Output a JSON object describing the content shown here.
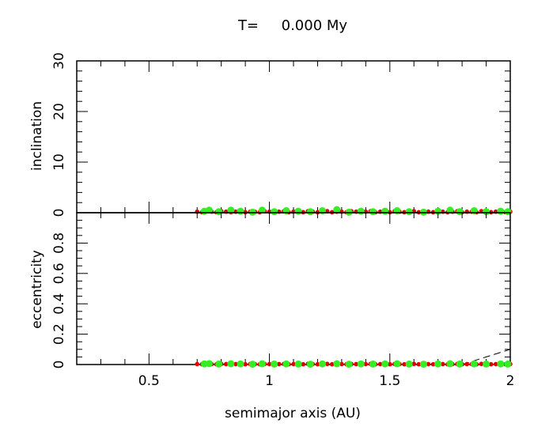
{
  "chart_data": [
    {
      "type": "scatter",
      "title": "T=     0.000 My",
      "xlabel": "",
      "ylabel": "inclination",
      "xlim": [
        0.2,
        2.0
      ],
      "ylim": [
        0,
        30
      ],
      "yticks": [
        0,
        10,
        20,
        30
      ],
      "grid": false,
      "series": [
        {
          "color": "#dd0000",
          "x": [
            0.7,
            0.72,
            0.74,
            0.76,
            0.78,
            0.8,
            0.82,
            0.84,
            0.86,
            0.88,
            0.9,
            0.92,
            0.94,
            0.96,
            0.98,
            1.0,
            1.02,
            1.04,
            1.06,
            1.08,
            1.1,
            1.12,
            1.14,
            1.16,
            1.18,
            1.2,
            1.22,
            1.24,
            1.26,
            1.28,
            1.3,
            1.32,
            1.34,
            1.36,
            1.38,
            1.4,
            1.42,
            1.44,
            1.46,
            1.48,
            1.5,
            1.52,
            1.54,
            1.56,
            1.58,
            1.6,
            1.62,
            1.64,
            1.66,
            1.68,
            1.7,
            1.72,
            1.74,
            1.76,
            1.78,
            1.8,
            1.82,
            1.84,
            1.86,
            1.88,
            1.9,
            1.92,
            1.94,
            1.96,
            1.98,
            2.0
          ],
          "y": [
            0.2,
            0.1,
            0.3,
            0.2,
            0.1,
            0.3,
            0.2,
            0.1,
            0.2,
            0.3,
            0.1,
            0.2,
            0.2,
            0.1,
            0.3,
            0.2,
            0.1,
            0.2,
            0.3,
            0.1,
            0.2,
            0.2,
            0.1,
            0.3,
            0.2,
            0.1,
            0.2,
            0.3,
            0.1,
            0.2,
            0.2,
            0.1,
            0.3,
            0.2,
            0.1,
            0.2,
            0.3,
            0.1,
            0.2,
            0.2,
            0.1,
            0.3,
            0.2,
            0.1,
            0.2,
            0.3,
            0.1,
            0.2,
            0.2,
            0.1,
            0.3,
            0.2,
            0.1,
            0.2,
            0.3,
            0.1,
            0.2,
            0.2,
            0.1,
            0.3,
            0.2,
            0.1,
            0.2,
            0.3,
            0.1,
            0.2
          ]
        },
        {
          "color": "#33ee22",
          "x": [
            0.73,
            0.75,
            0.79,
            0.84,
            0.88,
            0.93,
            0.97,
            1.02,
            1.07,
            1.12,
            1.17,
            1.22,
            1.28,
            1.33,
            1.38,
            1.43,
            1.48,
            1.53,
            1.58,
            1.64,
            1.7,
            1.75,
            1.79,
            1.85,
            1.9,
            1.96,
            1.99
          ],
          "y": [
            0.3,
            0.5,
            0.2,
            0.5,
            0.3,
            0.1,
            0.5,
            0.2,
            0.4,
            0.3,
            0.2,
            0.4,
            0.6,
            0.1,
            0.3,
            0.2,
            0.3,
            0.4,
            0.2,
            0.1,
            0.3,
            0.5,
            0.2,
            0.4,
            0.2,
            0.3,
            0.2
          ]
        }
      ]
    },
    {
      "type": "scatter",
      "xlabel": "semimajor axis (AU)",
      "ylabel": "eccentricity",
      "xlim": [
        0.2,
        2.0
      ],
      "ylim": [
        0,
        1.0
      ],
      "xticks": [
        0.5,
        1,
        1.5,
        2
      ],
      "xticklabels": [
        "0.5",
        "1",
        "1.5",
        "2"
      ],
      "yticks": [
        0,
        0.2,
        0.4,
        0.6,
        0.8
      ],
      "yticklabels": [
        "0",
        "0.2",
        "0.4",
        "0.6",
        "0.8"
      ],
      "grid": false,
      "series": [
        {
          "color": "#dd0000",
          "x": [
            0.7,
            0.72,
            0.74,
            0.76,
            0.78,
            0.8,
            0.82,
            0.84,
            0.86,
            0.88,
            0.9,
            0.92,
            0.94,
            0.96,
            0.98,
            1.0,
            1.02,
            1.04,
            1.06,
            1.08,
            1.1,
            1.12,
            1.14,
            1.16,
            1.18,
            1.2,
            1.22,
            1.24,
            1.26,
            1.28,
            1.3,
            1.32,
            1.34,
            1.36,
            1.38,
            1.4,
            1.42,
            1.44,
            1.46,
            1.48,
            1.5,
            1.52,
            1.54,
            1.56,
            1.58,
            1.6,
            1.62,
            1.64,
            1.66,
            1.68,
            1.7,
            1.72,
            1.74,
            1.76,
            1.78,
            1.8,
            1.82,
            1.84,
            1.86,
            1.88,
            1.9,
            1.92,
            1.94,
            1.96,
            1.98,
            2.0
          ],
          "y": [
            0.003,
            0.002,
            0.004,
            0.003,
            0.002,
            0.004,
            0.003,
            0.002,
            0.003,
            0.004,
            0.002,
            0.003,
            0.003,
            0.002,
            0.004,
            0.003,
            0.002,
            0.003,
            0.004,
            0.002,
            0.003,
            0.003,
            0.002,
            0.004,
            0.003,
            0.002,
            0.003,
            0.004,
            0.002,
            0.003,
            0.003,
            0.002,
            0.004,
            0.003,
            0.002,
            0.003,
            0.004,
            0.002,
            0.003,
            0.003,
            0.002,
            0.004,
            0.003,
            0.002,
            0.003,
            0.004,
            0.002,
            0.003,
            0.003,
            0.002,
            0.004,
            0.003,
            0.002,
            0.003,
            0.004,
            0.002,
            0.003,
            0.003,
            0.002,
            0.004,
            0.003,
            0.002,
            0.003,
            0.004,
            0.002,
            0.003
          ]
        },
        {
          "color": "#33ee22",
          "x": [
            0.73,
            0.75,
            0.79,
            0.84,
            0.88,
            0.93,
            0.97,
            1.02,
            1.07,
            1.12,
            1.17,
            1.22,
            1.28,
            1.33,
            1.38,
            1.43,
            1.48,
            1.53,
            1.58,
            1.64,
            1.7,
            1.75,
            1.79,
            1.85,
            1.9,
            1.96,
            1.99
          ],
          "y": [
            0.004,
            0.006,
            0.003,
            0.005,
            0.004,
            0.002,
            0.005,
            0.003,
            0.004,
            0.003,
            0.002,
            0.004,
            0.005,
            0.002,
            0.004,
            0.003,
            0.004,
            0.005,
            0.003,
            0.002,
            0.004,
            0.005,
            0.003,
            0.004,
            0.003,
            0.004,
            0.003
          ]
        }
      ],
      "curve": {
        "style": "dashed",
        "color": "#000000",
        "x": [
          1.8,
          1.85,
          1.9,
          1.95,
          2.0
        ],
        "y": [
          0.0,
          0.025,
          0.05,
          0.075,
          0.1
        ]
      }
    }
  ]
}
